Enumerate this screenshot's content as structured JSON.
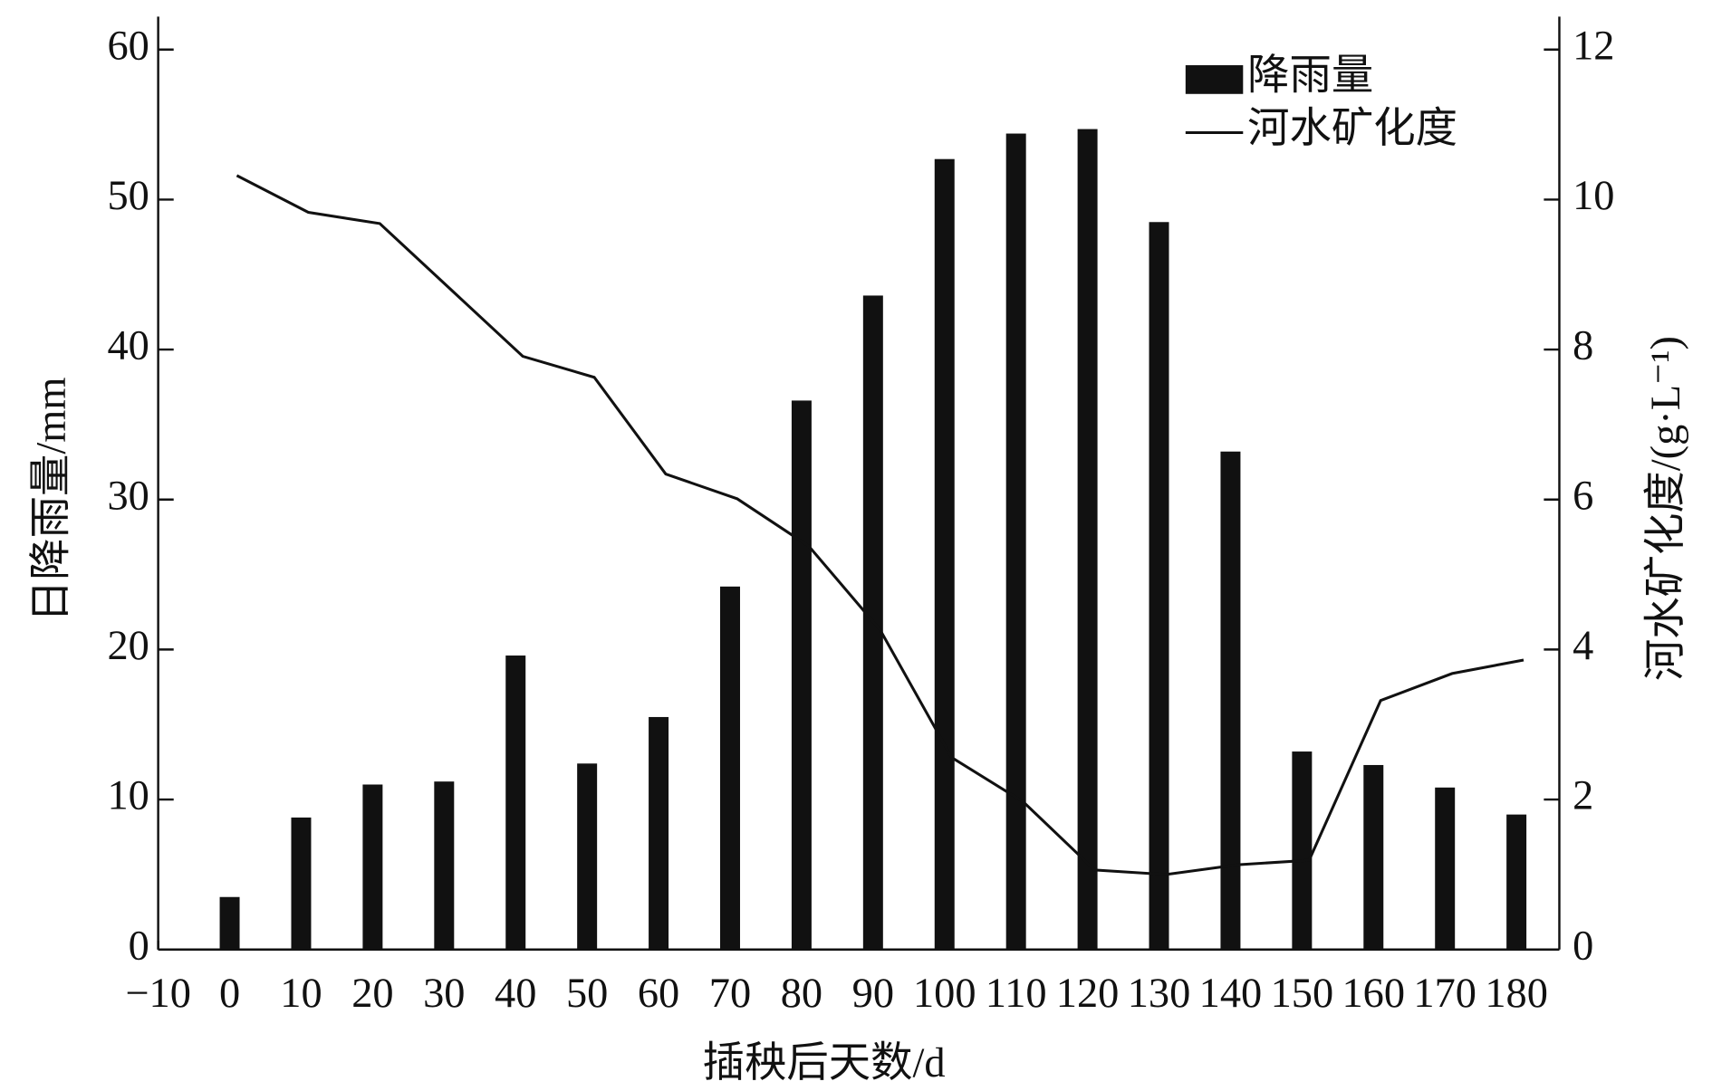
{
  "chart_data": {
    "type": "bar-line",
    "x_label": "插秧后天数/d",
    "y_label": "日降雨量/mm",
    "y2_label": "河水矿化度/(g·L⁻¹)",
    "xlim": [
      -10,
      186
    ],
    "xticks": [
      {
        "value": -10,
        "label": "−10"
      },
      0,
      10,
      20,
      30,
      40,
      50,
      60,
      70,
      80,
      90,
      100,
      110,
      120,
      130,
      140,
      150,
      160,
      170,
      180
    ],
    "ylim": [
      0,
      62.2
    ],
    "yticks": [
      0,
      10,
      20,
      30,
      40,
      50,
      60
    ],
    "y2lim": [
      0,
      12.44
    ],
    "y2ticks": [
      0,
      2,
      4,
      6,
      8,
      10,
      12
    ],
    "legend": "upper right",
    "series": [
      {
        "name": "降雨量",
        "type": "bar",
        "color": "#111111",
        "x": [
          0,
          10,
          20,
          30,
          40,
          50,
          60,
          70,
          80,
          90,
          100,
          110,
          120,
          130,
          140,
          150,
          160,
          170,
          180
        ],
        "values": [
          3.5,
          8.8,
          11.0,
          11.2,
          19.6,
          12.4,
          15.5,
          24.2,
          36.6,
          43.6,
          52.7,
          54.4,
          54.7,
          48.5,
          33.2,
          13.2,
          12.3,
          10.8,
          9.0
        ]
      },
      {
        "name": "河水矿化度",
        "type": "line",
        "color": "#111111",
        "axis": "y2",
        "x": [
          1,
          11,
          21,
          41,
          51,
          61,
          71,
          81,
          91,
          101,
          111,
          121,
          131,
          141,
          151,
          161,
          171,
          181
        ],
        "values": [
          10.32,
          9.83,
          9.68,
          7.91,
          7.63,
          6.34,
          6.01,
          5.38,
          4.26,
          2.56,
          1.97,
          1.06,
          1.0,
          1.13,
          1.19,
          3.32,
          3.68,
          3.86
        ]
      }
    ]
  }
}
